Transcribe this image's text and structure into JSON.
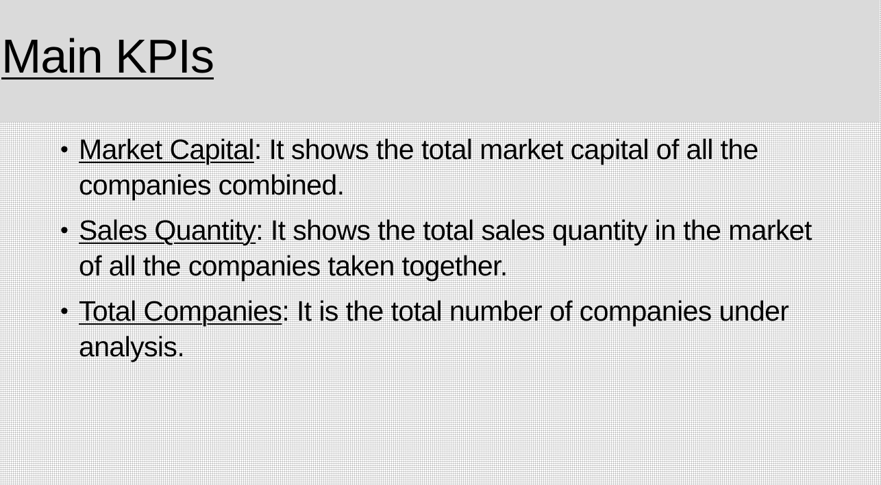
{
  "slide": {
    "title": "Main KPIs",
    "bullet_glyph": "•",
    "kpis": [
      {
        "term": "Market Capital",
        "description": ": It shows the total market capital of all the companies combined."
      },
      {
        "term": "Sales Quantity",
        "description": ": It shows the total sales quantity in the market of all the companies taken together."
      },
      {
        "term": "Total Companies",
        "description": ": It is the total number of companies under analysis."
      }
    ]
  }
}
